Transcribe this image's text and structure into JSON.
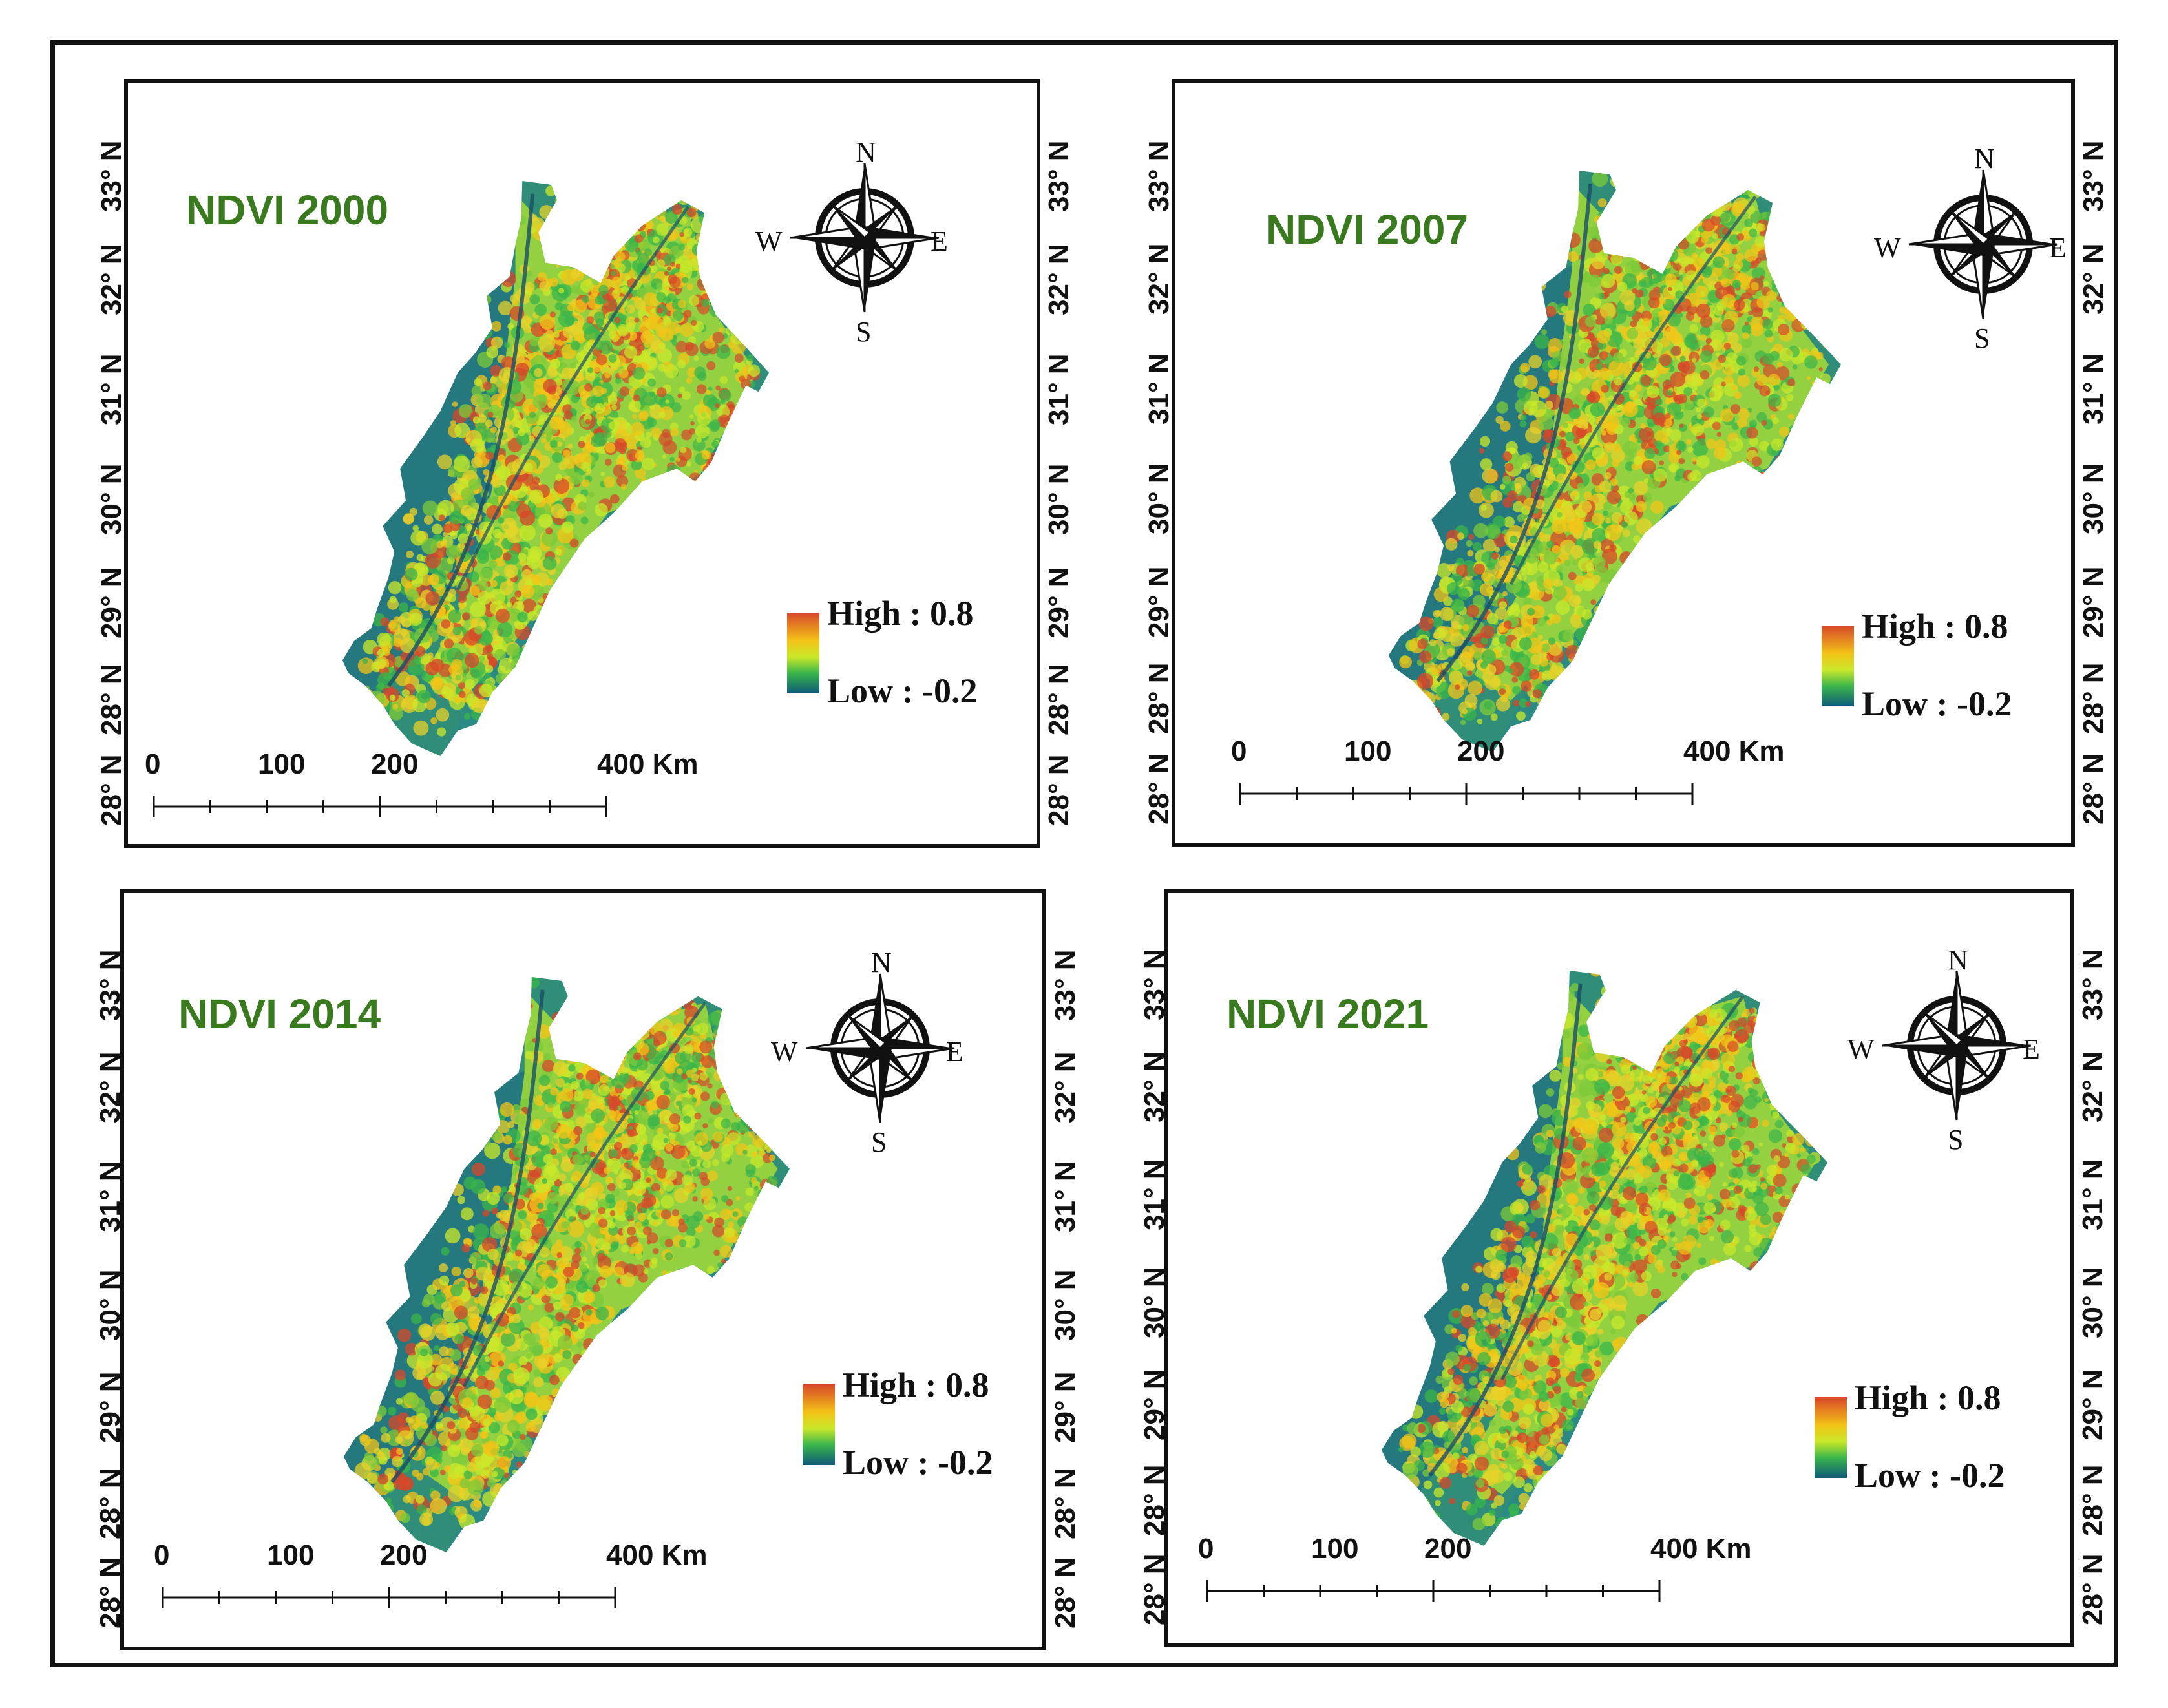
{
  "colors": {
    "ndvi_high": "#d7472a",
    "ndvi_mid_high": "#f3c417",
    "ndvi_mid": "#c9e82a",
    "ndvi_mid_low": "#3ab54a",
    "ndvi_low": "#0f5a7a",
    "title_green": "#3a7a1e"
  },
  "compass": {
    "n": "N",
    "s": "S",
    "e": "E",
    "w": "W",
    "icon": "compass-rose-icon"
  },
  "legend": {
    "high": "High : 0.8",
    "low": "Low : -0.2"
  },
  "scale": {
    "labels": [
      "0",
      "100",
      "200",
      "400 Km"
    ]
  },
  "latitudes": [
    "33° N",
    "32° N",
    "31° N",
    "30° N",
    "29° N",
    "28° N",
    "28° N"
  ],
  "panels": [
    {
      "title": "NDVI 2000"
    },
    {
      "title": "NDVI 2007"
    },
    {
      "title": "NDVI 2014"
    },
    {
      "title": "NDVI 2021"
    }
  ]
}
